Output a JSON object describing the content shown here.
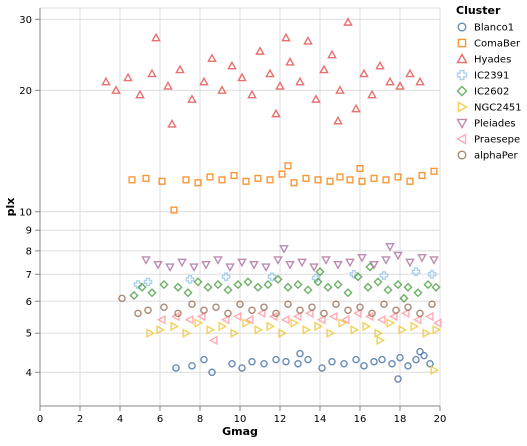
{
  "chart_data": {
    "type": "scatter",
    "xlabel": "Gmag",
    "ylabel": "plx",
    "xlim": [
      0,
      20
    ],
    "ylim": [
      3.3,
      32
    ],
    "yscale": "log",
    "grid": true,
    "legend": {
      "title": "Cluster",
      "placement": "right"
    },
    "x_ticks": [
      {
        "value": 0,
        "label": "0"
      },
      {
        "value": 2,
        "label": "2"
      },
      {
        "value": 4,
        "label": "4"
      },
      {
        "value": 6,
        "label": "6"
      },
      {
        "value": 8,
        "label": "8"
      },
      {
        "value": 10,
        "label": "10"
      },
      {
        "value": 12,
        "label": "12"
      },
      {
        "value": 14,
        "label": "14"
      },
      {
        "value": 16,
        "label": "16"
      },
      {
        "value": 18,
        "label": "18"
      },
      {
        "value": 20,
        "label": "20"
      }
    ],
    "y_ticks": [
      {
        "value": 4,
        "label": "4"
      },
      {
        "value": 5,
        "label": "5"
      },
      {
        "value": 6,
        "label": "6"
      },
      {
        "value": 7,
        "label": "7"
      },
      {
        "value": 8,
        "label": "8"
      },
      {
        "value": 9,
        "label": "9"
      },
      {
        "value": 10,
        "label": "10"
      },
      {
        "value": 20,
        "label": "20"
      },
      {
        "value": 30,
        "label": "30"
      }
    ],
    "y_minor_gridlines": [
      4,
      5,
      6,
      7,
      8,
      9,
      10,
      20,
      30
    ],
    "series": [
      {
        "name": "Blanco1",
        "shape": "circle",
        "color": "#4c78a8",
        "points": [
          [
            6.8,
            4.1
          ],
          [
            7.6,
            4.15
          ],
          [
            8.2,
            4.3
          ],
          [
            8.6,
            4.0
          ],
          [
            9.6,
            4.2
          ],
          [
            10.1,
            4.1
          ],
          [
            10.6,
            4.25
          ],
          [
            11.2,
            4.2
          ],
          [
            11.8,
            4.3
          ],
          [
            12.3,
            4.25
          ],
          [
            12.9,
            4.2
          ],
          [
            13.4,
            4.3
          ],
          [
            14.1,
            4.1
          ],
          [
            14.6,
            4.25
          ],
          [
            15.2,
            4.2
          ],
          [
            15.8,
            4.3
          ],
          [
            16.2,
            4.15
          ],
          [
            16.7,
            4.25
          ],
          [
            17.1,
            4.3
          ],
          [
            17.6,
            4.2
          ],
          [
            18.0,
            4.35
          ],
          [
            18.4,
            4.15
          ],
          [
            18.8,
            4.3
          ],
          [
            19.2,
            4.4
          ],
          [
            19.5,
            4.2
          ],
          [
            13.0,
            4.45
          ],
          [
            17.9,
            3.85
          ],
          [
            19.0,
            4.5
          ]
        ]
      },
      {
        "name": "ComaBer",
        "shape": "square",
        "color": "#f58518",
        "points": [
          [
            4.6,
            12.0
          ],
          [
            5.3,
            12.1
          ],
          [
            6.1,
            11.9
          ],
          [
            6.7,
            10.1
          ],
          [
            7.3,
            12.0
          ],
          [
            7.9,
            11.8
          ],
          [
            8.5,
            12.2
          ],
          [
            9.1,
            12.0
          ],
          [
            9.7,
            12.3
          ],
          [
            10.3,
            11.9
          ],
          [
            10.9,
            12.1
          ],
          [
            11.5,
            12.0
          ],
          [
            12.1,
            12.4
          ],
          [
            12.7,
            11.8
          ],
          [
            13.3,
            12.1
          ],
          [
            13.9,
            12.0
          ],
          [
            14.5,
            11.9
          ],
          [
            15.0,
            12.2
          ],
          [
            15.5,
            12.0
          ],
          [
            16.1,
            11.9
          ],
          [
            16.7,
            12.1
          ],
          [
            17.3,
            12.0
          ],
          [
            17.9,
            12.2
          ],
          [
            18.5,
            11.9
          ],
          [
            19.1,
            12.3
          ],
          [
            19.7,
            12.6
          ],
          [
            12.4,
            13.0
          ],
          [
            16.0,
            12.8
          ]
        ]
      },
      {
        "name": "Hyades",
        "shape": "triangle-up",
        "color": "#e45756",
        "points": [
          [
            3.3,
            21.0
          ],
          [
            3.8,
            20.0
          ],
          [
            4.4,
            21.5
          ],
          [
            5.0,
            19.5
          ],
          [
            5.6,
            22.0
          ],
          [
            5.8,
            27.0
          ],
          [
            6.4,
            20.5
          ],
          [
            7.0,
            22.5
          ],
          [
            7.6,
            19.0
          ],
          [
            8.2,
            21.0
          ],
          [
            8.6,
            24.0
          ],
          [
            9.1,
            20.0
          ],
          [
            9.6,
            23.0
          ],
          [
            10.1,
            21.5
          ],
          [
            10.6,
            19.5
          ],
          [
            11.0,
            25.0
          ],
          [
            11.5,
            22.0
          ],
          [
            12.0,
            20.5
          ],
          [
            12.5,
            23.5
          ],
          [
            13.0,
            21.0
          ],
          [
            13.4,
            26.5
          ],
          [
            13.8,
            19.0
          ],
          [
            14.2,
            22.5
          ],
          [
            14.6,
            24.5
          ],
          [
            15.0,
            20.0
          ],
          [
            15.4,
            29.5
          ],
          [
            15.8,
            18.0
          ],
          [
            16.2,
            22.0
          ],
          [
            16.6,
            19.5
          ],
          [
            17.0,
            23.0
          ],
          [
            17.5,
            21.0
          ],
          [
            18.0,
            20.5
          ],
          [
            18.5,
            22.0
          ],
          [
            19.0,
            21.0
          ],
          [
            6.6,
            16.5
          ],
          [
            11.8,
            17.5
          ],
          [
            14.9,
            16.8
          ],
          [
            12.3,
            27.0
          ]
        ]
      },
      {
        "name": "IC2391",
        "shape": "cross",
        "color": "#9ecae9",
        "points": [
          [
            4.9,
            6.6
          ],
          [
            5.4,
            6.7
          ],
          [
            7.5,
            6.8
          ],
          [
            9.3,
            6.9
          ],
          [
            11.6,
            6.9
          ],
          [
            13.8,
            6.85
          ],
          [
            15.7,
            7.0
          ],
          [
            17.2,
            6.95
          ],
          [
            18.8,
            7.1
          ],
          [
            19.6,
            7.0
          ]
        ]
      },
      {
        "name": "IC2602",
        "shape": "diamond",
        "color": "#54a24b",
        "points": [
          [
            4.7,
            6.2
          ],
          [
            5.1,
            6.5
          ],
          [
            5.6,
            6.3
          ],
          [
            6.2,
            6.6
          ],
          [
            6.9,
            6.5
          ],
          [
            7.4,
            6.3
          ],
          [
            7.9,
            6.7
          ],
          [
            8.4,
            6.5
          ],
          [
            8.9,
            6.6
          ],
          [
            9.4,
            6.4
          ],
          [
            9.9,
            6.6
          ],
          [
            10.4,
            6.7
          ],
          [
            10.9,
            6.5
          ],
          [
            11.4,
            6.6
          ],
          [
            11.9,
            6.8
          ],
          [
            12.4,
            6.5
          ],
          [
            12.9,
            6.6
          ],
          [
            13.4,
            6.4
          ],
          [
            13.9,
            6.7
          ],
          [
            14.4,
            6.5
          ],
          [
            14.9,
            6.6
          ],
          [
            15.4,
            6.3
          ],
          [
            15.9,
            6.9
          ],
          [
            16.4,
            6.5
          ],
          [
            16.9,
            6.7
          ],
          [
            17.4,
            6.4
          ],
          [
            17.9,
            6.6
          ],
          [
            18.4,
            6.5
          ],
          [
            18.9,
            6.3
          ],
          [
            19.4,
            6.6
          ],
          [
            19.8,
            6.5
          ],
          [
            16.5,
            7.3
          ],
          [
            14.0,
            7.1
          ],
          [
            18.2,
            6.1
          ]
        ]
      },
      {
        "name": "NGC2451",
        "shape": "triangle-right",
        "color": "#eeca3b",
        "points": [
          [
            5.5,
            5.0
          ],
          [
            6.0,
            5.1
          ],
          [
            6.7,
            5.2
          ],
          [
            7.3,
            5.0
          ],
          [
            7.9,
            5.3
          ],
          [
            8.5,
            5.1
          ],
          [
            9.1,
            5.2
          ],
          [
            9.7,
            5.0
          ],
          [
            10.3,
            5.3
          ],
          [
            10.9,
            5.1
          ],
          [
            11.5,
            5.2
          ],
          [
            12.1,
            5.0
          ],
          [
            12.7,
            5.3
          ],
          [
            13.3,
            5.1
          ],
          [
            13.9,
            5.2
          ],
          [
            14.5,
            5.0
          ],
          [
            15.1,
            5.3
          ],
          [
            15.7,
            5.1
          ],
          [
            16.3,
            5.2
          ],
          [
            16.9,
            5.0
          ],
          [
            17.5,
            5.3
          ],
          [
            18.1,
            5.1
          ],
          [
            18.7,
            5.2
          ],
          [
            19.3,
            5.0
          ],
          [
            19.8,
            5.1
          ],
          [
            19.7,
            4.05
          ],
          [
            17.0,
            4.8
          ]
        ]
      },
      {
        "name": "Pleiades",
        "shape": "triangle-down",
        "color": "#b279a2",
        "points": [
          [
            5.3,
            7.6
          ],
          [
            5.9,
            7.4
          ],
          [
            6.5,
            7.3
          ],
          [
            7.1,
            7.5
          ],
          [
            7.7,
            7.3
          ],
          [
            8.3,
            7.4
          ],
          [
            8.9,
            7.6
          ],
          [
            9.5,
            7.3
          ],
          [
            10.1,
            7.5
          ],
          [
            10.7,
            7.4
          ],
          [
            11.3,
            7.3
          ],
          [
            11.9,
            7.6
          ],
          [
            12.5,
            7.4
          ],
          [
            13.1,
            7.5
          ],
          [
            13.7,
            7.3
          ],
          [
            14.3,
            7.6
          ],
          [
            14.9,
            7.4
          ],
          [
            15.5,
            7.5
          ],
          [
            16.1,
            7.7
          ],
          [
            16.7,
            7.4
          ],
          [
            17.3,
            7.6
          ],
          [
            17.9,
            7.8
          ],
          [
            18.5,
            7.5
          ],
          [
            19.1,
            7.7
          ],
          [
            19.7,
            7.6
          ],
          [
            12.2,
            8.1
          ],
          [
            17.5,
            8.2
          ]
        ]
      },
      {
        "name": "Praesepe",
        "shape": "triangle-left",
        "color": "#ff9da6",
        "points": [
          [
            6.1,
            5.4
          ],
          [
            6.8,
            5.5
          ],
          [
            7.5,
            5.4
          ],
          [
            8.1,
            5.5
          ],
          [
            8.7,
            4.8
          ],
          [
            9.3,
            5.4
          ],
          [
            9.9,
            5.5
          ],
          [
            10.5,
            5.4
          ],
          [
            11.1,
            5.6
          ],
          [
            11.7,
            5.5
          ],
          [
            12.3,
            5.4
          ],
          [
            12.9,
            5.5
          ],
          [
            13.5,
            5.6
          ],
          [
            14.1,
            5.4
          ],
          [
            14.7,
            5.5
          ],
          [
            15.3,
            5.4
          ],
          [
            15.9,
            5.6
          ],
          [
            16.5,
            5.5
          ],
          [
            17.1,
            5.4
          ],
          [
            17.7,
            5.5
          ],
          [
            18.3,
            5.6
          ],
          [
            18.9,
            5.4
          ],
          [
            19.5,
            5.5
          ],
          [
            19.9,
            5.3
          ]
        ]
      },
      {
        "name": "alphaPer",
        "shape": "circle",
        "color": "#9d755d",
        "points": [
          [
            4.1,
            6.1
          ],
          [
            4.9,
            5.6
          ],
          [
            5.4,
            5.7
          ],
          [
            6.2,
            5.8
          ],
          [
            6.9,
            5.6
          ],
          [
            7.6,
            5.9
          ],
          [
            8.2,
            5.7
          ],
          [
            8.8,
            5.8
          ],
          [
            9.4,
            5.6
          ],
          [
            10.0,
            5.9
          ],
          [
            10.6,
            5.7
          ],
          [
            11.2,
            5.8
          ],
          [
            11.8,
            5.6
          ],
          [
            12.4,
            5.9
          ],
          [
            13.0,
            5.7
          ],
          [
            13.6,
            5.8
          ],
          [
            14.2,
            5.6
          ],
          [
            14.8,
            5.9
          ],
          [
            15.4,
            5.7
          ],
          [
            16.0,
            5.8
          ],
          [
            16.6,
            5.6
          ],
          [
            17.2,
            5.9
          ],
          [
            17.8,
            5.7
          ],
          [
            18.4,
            5.8
          ],
          [
            19.0,
            5.6
          ],
          [
            19.6,
            5.9
          ]
        ]
      }
    ]
  }
}
